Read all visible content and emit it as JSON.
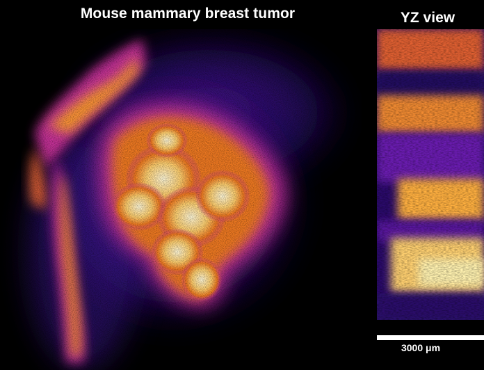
{
  "figure": {
    "main_title": "Mouse mammary breast tumor",
    "yz_title": "YZ view",
    "scale_label": "3000 μm"
  },
  "colormap": {
    "name": "fire",
    "stops": [
      "#000000",
      "#2a0a6a",
      "#6a1fb0",
      "#c0289a",
      "#f0552a",
      "#ffa820",
      "#fff2b0"
    ]
  }
}
